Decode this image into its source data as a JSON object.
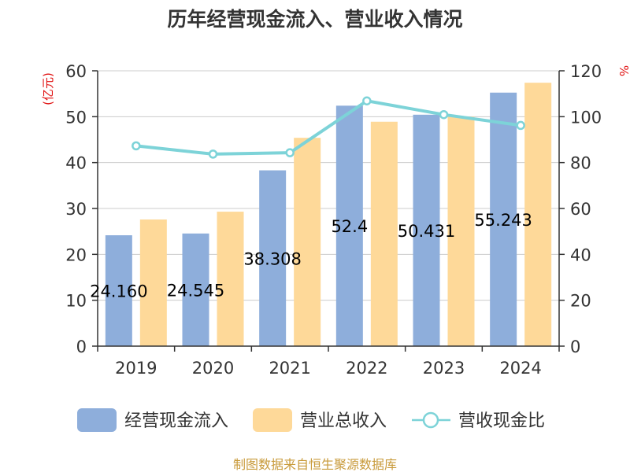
{
  "chart_data": {
    "type": "bar",
    "title": "历年经营现金流入、营业收入情况",
    "categories": [
      "2019",
      "2020",
      "2021",
      "2022",
      "2023",
      "2024"
    ],
    "left_axis": {
      "unit_label": "(亿元)",
      "ylim": [
        0,
        60
      ],
      "ticks": [
        "0",
        "10",
        "20",
        "30",
        "40",
        "50",
        "60"
      ]
    },
    "right_axis": {
      "unit_label": "%",
      "ylim": [
        0,
        120
      ],
      "ticks": [
        "0",
        "20",
        "40",
        "60",
        "80",
        "100",
        "120"
      ]
    },
    "series": [
      {
        "name": "经营现金流入",
        "kind": "bar",
        "axis": "left",
        "color": "#8eaedb",
        "values": [
          24.16,
          24.545,
          38.308,
          52.4,
          50.431,
          55.243
        ]
      },
      {
        "name": "营业总收入",
        "kind": "bar",
        "axis": "left",
        "color": "#fed999",
        "values": [
          27.6,
          29.3,
          45.4,
          48.9,
          50.0,
          57.4
        ]
      },
      {
        "name": "营收现金比",
        "kind": "line",
        "axis": "right",
        "color": "#7dd3d8",
        "values": [
          87.3,
          83.7,
          84.3,
          106.9,
          100.9,
          96.2
        ]
      }
    ],
    "data_labels": [
      "24.160",
      "24.545",
      "38.308",
      "52.4",
      "50.431",
      "55.243"
    ],
    "gridlines": true,
    "legend_position": "bottom"
  },
  "source_note": "制图数据来自恒生聚源数据库"
}
